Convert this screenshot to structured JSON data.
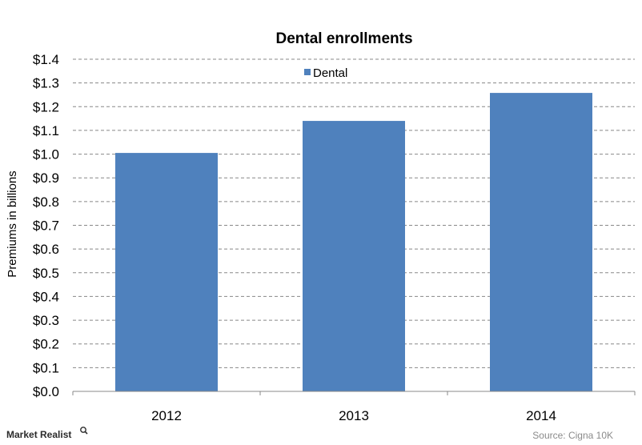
{
  "chart_data": {
    "type": "bar",
    "title": "Dental enrollments",
    "ylabel": "Premiums  in billions",
    "xlabel": "",
    "categories": [
      "2012",
      "2013",
      "2014"
    ],
    "series": [
      {
        "name": "Dental",
        "values": [
          1.005,
          1.14,
          1.258
        ],
        "color": "#4f81bd"
      }
    ],
    "ylim": [
      0,
      1.4
    ],
    "yticks": [
      "$0.0",
      "$0.1",
      "$0.2",
      "$0.3",
      "$0.4",
      "$0.5",
      "$0.6",
      "$0.7",
      "$0.8",
      "$0.9",
      "$1.0",
      "$1.1",
      "$1.2",
      "$1.3",
      "$1.4"
    ],
    "grid": true,
    "legend_position": "top-center"
  },
  "source": "Source: Cigna 10K",
  "brand": "Market Realist",
  "colors": {
    "bar": "#4f81bd",
    "grid": "#888888",
    "axis": "#888888"
  }
}
